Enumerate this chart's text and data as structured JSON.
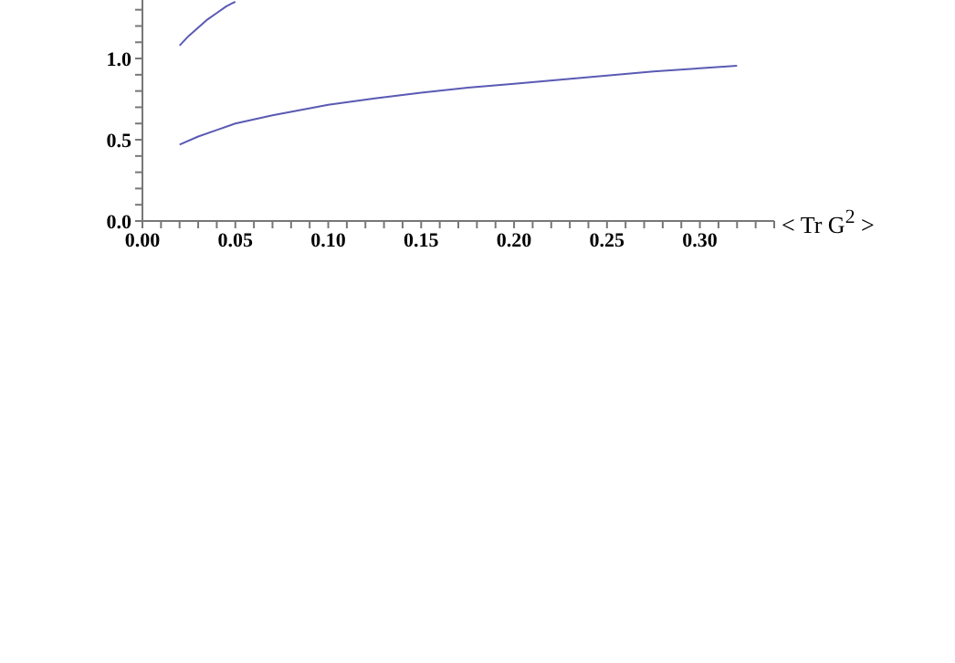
{
  "chart_data": {
    "type": "line",
    "xlabel": "< Tr G$^{2}$ >",
    "xlim": [
      0,
      0.34
    ],
    "ylim": [
      0,
      1.36
    ],
    "xticks": [
      "0.00",
      {
        "value": 0.01,
        "label": null
      },
      {
        "value": 0.02,
        "label": null
      },
      {
        "value": 0.03,
        "label": null
      },
      {
        "value": 0.04,
        "label": null
      },
      {
        "value": 0.05,
        "label": "0.05"
      },
      {
        "value": 0.06,
        "label": null
      },
      {
        "value": 0.07,
        "label": null
      },
      {
        "value": 0.08,
        "label": null
      },
      {
        "value": 0.09,
        "label": null
      },
      {
        "value": 0.1,
        "label": "0.10"
      },
      {
        "value": 0.11,
        "label": null
      },
      {
        "value": 0.12,
        "label": null
      },
      {
        "value": 0.13,
        "label": null
      },
      {
        "value": 0.14,
        "label": null
      },
      {
        "value": 0.15,
        "label": "0.15"
      },
      {
        "value": 0.16,
        "label": null
      },
      {
        "value": 0.17,
        "label": null
      },
      {
        "value": 0.18,
        "label": null
      },
      {
        "value": 0.19,
        "label": null
      },
      {
        "value": 0.2,
        "label": "0.20"
      },
      {
        "value": 0.21,
        "label": null
      },
      {
        "value": 0.22,
        "label": null
      },
      {
        "value": 0.23,
        "label": null
      },
      {
        "value": 0.24,
        "label": null
      },
      {
        "value": 0.25,
        "label": "0.25"
      },
      {
        "value": 0.26,
        "label": null
      },
      {
        "value": 0.27,
        "label": null
      },
      {
        "value": 0.28,
        "label": null
      },
      {
        "value": 0.29,
        "label": null
      },
      {
        "value": 0.3,
        "label": "0.30"
      },
      {
        "value": 0.31,
        "label": null
      },
      {
        "value": 0.32,
        "label": null
      },
      {
        "value": 0.33,
        "label": null
      },
      {
        "value": 0.34,
        "label": null
      }
    ],
    "yticks": [
      {
        "value": 0,
        "label": "0.0"
      },
      {
        "value": 0.1,
        "label": null
      },
      {
        "value": 0.2,
        "label": null
      },
      {
        "value": 0.3,
        "label": null
      },
      {
        "value": 0.4,
        "label": null
      },
      0.5,
      {
        "value": 0.6,
        "label": null
      },
      {
        "value": 0.7,
        "label": null
      },
      {
        "value": 0.8,
        "label": null
      },
      {
        "value": 0.9,
        "label": null
      },
      {
        "value": 1,
        "label": "1.0"
      },
      {
        "value": 1.1,
        "label": null
      },
      {
        "value": 1.2,
        "label": null
      },
      {
        "value": 1.3,
        "label": null
      }
    ],
    "marker": "none",
    "line_style": "solid",
    "series": [
      {
        "color": "#5a5ab4",
        "x": [
          0.02,
          0.025,
          0.03,
          0.035,
          0.04,
          0.045,
          0.05
        ],
        "values": [
          1.08,
          1.14,
          1.19,
          1.24,
          1.28,
          1.32,
          1.35
        ]
      },
      {
        "color": "#5a5ab4",
        "x": [
          0.02,
          0.03,
          0.04,
          0.05,
          0.07,
          0.1,
          0.125,
          0.15,
          0.175,
          0.2,
          0.225,
          0.25,
          0.275,
          0.3,
          0.32
        ],
        "values": [
          0.47,
          0.52,
          0.56,
          0.6,
          0.65,
          0.715,
          0.755,
          0.79,
          0.82,
          0.845,
          0.87,
          0.895,
          0.92,
          0.94,
          0.955
        ]
      }
    ]
  }
}
